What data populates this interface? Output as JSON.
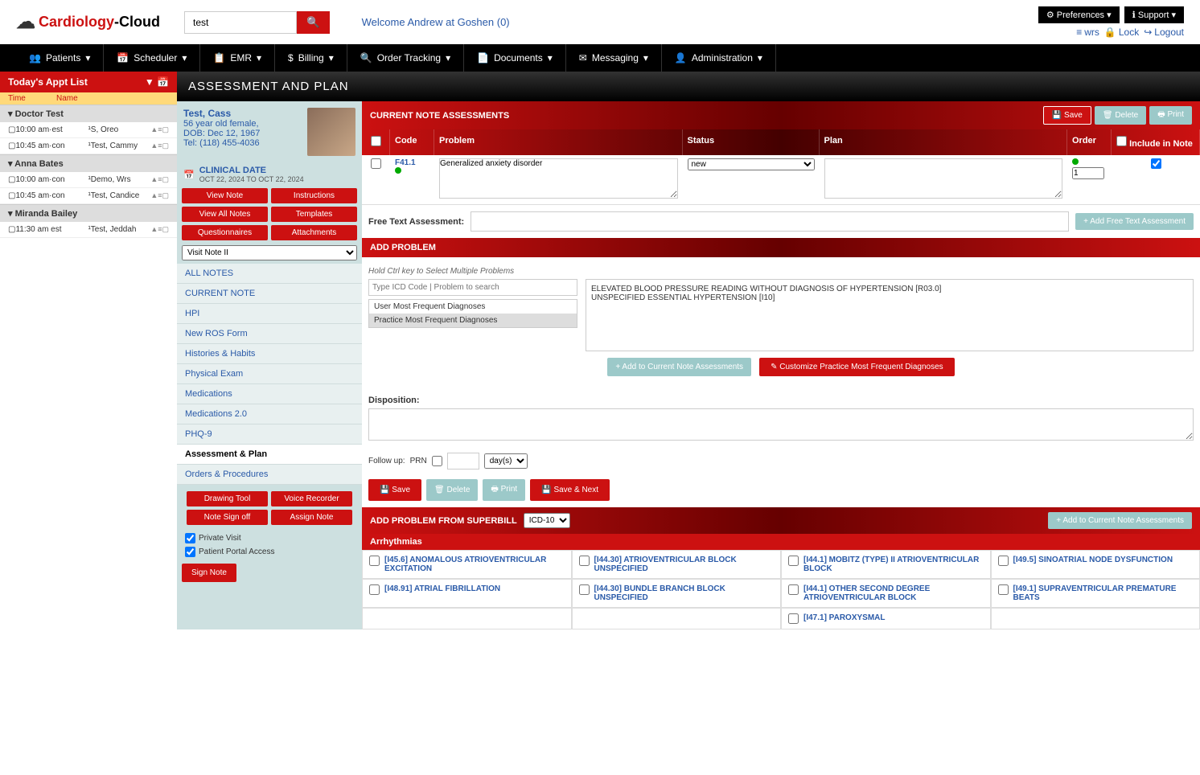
{
  "logo": {
    "part1": "Cardiology",
    "part2": "-Cloud"
  },
  "search": {
    "value": "test"
  },
  "welcome": "Welcome Andrew at Goshen (0)",
  "topbtns": {
    "preferences": "Preferences",
    "support": "Support"
  },
  "toplinks": {
    "wrs": "wrs",
    "lock": "Lock",
    "logout": "Logout"
  },
  "nav": [
    {
      "label": "Patients",
      "icon": "👥"
    },
    {
      "label": "Scheduler",
      "icon": "📅"
    },
    {
      "label": "EMR",
      "icon": "📋"
    },
    {
      "label": "Billing",
      "icon": "$"
    },
    {
      "label": "Order Tracking",
      "icon": "🔍"
    },
    {
      "label": "Documents",
      "icon": "📄"
    },
    {
      "label": "Messaging",
      "icon": "✉"
    },
    {
      "label": "Administration",
      "icon": "👤"
    }
  ],
  "apptlist": {
    "title": "Today's Appt List",
    "cols": {
      "time": "Time",
      "name": "Name"
    },
    "groups": [
      {
        "doctor": "Doctor Test",
        "appts": [
          {
            "time": "10:00 am·est",
            "name": "¹S, Oreo"
          },
          {
            "time": "10:45 am·con",
            "name": "¹Test, Cammy"
          }
        ]
      },
      {
        "doctor": "Anna Bates",
        "appts": [
          {
            "time": "10:00 am·con",
            "name": "¹Demo, Wrs"
          },
          {
            "time": "10:45 am·con",
            "name": "¹Test, Candice"
          }
        ]
      },
      {
        "doctor": "Miranda Bailey",
        "appts": [
          {
            "time": "11:30 am est",
            "name": "¹Test, Jeddah"
          }
        ]
      }
    ]
  },
  "pagetitle": "ASSESSMENT AND PLAN",
  "patient": {
    "name": "Test, Cass",
    "demo": "56 year old female,",
    "dob": "DOB: Dec 12, 1967",
    "tel": "Tel: (118) 455-4036",
    "clindate_lbl": "CLINICAL DATE",
    "clindate_val": "OCT 22, 2024 TO OCT 22, 2024"
  },
  "patbtns": {
    "viewnote": "View Note",
    "instructions": "Instructions",
    "viewall": "View All Notes",
    "templates": "Templates",
    "questionnaires": "Questionnaires",
    "attachments": "Attachments"
  },
  "visitselect": "Visit Note II",
  "notenav": [
    "ALL NOTES",
    "CURRENT NOTE",
    "HPI",
    "New ROS Form",
    "Histories & Habits",
    "Physical Exam",
    "Medications",
    "Medications 2.0",
    "PHQ-9",
    "Assessment & Plan",
    "Orders & Procedures"
  ],
  "toolbtns": {
    "drawing": "Drawing Tool",
    "voice": "Voice Recorder",
    "signoff": "Note Sign off",
    "assign": "Assign Note",
    "private": "Private Visit",
    "portal": "Patient Portal Access",
    "signnote": "Sign Note"
  },
  "assess": {
    "hdr": "CURRENT NOTE ASSESSMENTS",
    "save": "Save",
    "delete": "Delete",
    "print": "Print",
    "cols": {
      "code": "Code",
      "problem": "Problem",
      "status": "Status",
      "plan": "Plan",
      "order": "Order",
      "include": "Include in Note"
    },
    "rows": [
      {
        "code": "F41.1",
        "problem": "Generalized anxiety disorder",
        "status": "new",
        "plan": "",
        "order": "1",
        "include": true
      }
    ],
    "freetxt_lbl": "Free Text Assessment:",
    "freetxt_btn": "+ Add Free Text Assessment"
  },
  "addprob": {
    "hdr": "ADD PROBLEM",
    "hint": "Hold Ctrl key to Select Multiple Problems",
    "placeholder": "Type ICD Code | Problem to search",
    "freq": [
      "User Most Frequent Diagnoses",
      "Practice Most Frequent Diagnoses"
    ],
    "results": "ELEVATED BLOOD PRESSURE READING WITHOUT DIAGNOSIS OF HYPERTENSION [R03.0]\nUNSPECIFIED ESSENTIAL HYPERTENSION [I10]",
    "addbtn": "+ Add to Current Note Assessments",
    "custbtn": "✎ Customize Practice Most Frequent Diagnoses"
  },
  "disp": {
    "lbl": "Disposition:"
  },
  "follow": {
    "lbl": "Follow up:",
    "prn": "PRN",
    "unit": "day(s)"
  },
  "actions": {
    "save": "Save",
    "delete": "Delete",
    "print": "Print",
    "savenext": "Save & Next"
  },
  "superbill": {
    "hdr": "ADD PROBLEM FROM SUPERBILL",
    "coding": "ICD-10",
    "addbtn": "+ Add to Current Note Assessments",
    "category": "Arrhythmias",
    "codes": [
      {
        "code": "[I45.6]",
        "desc": "ANOMALOUS ATRIOVENTRICULAR EXCITATION"
      },
      {
        "code": "[I44.30]",
        "desc": "ATRIOVENTRICULAR BLOCK UNSPECIFIED"
      },
      {
        "code": "[I44.1]",
        "desc": "MOBITZ (TYPE) II ATRIOVENTRICULAR BLOCK"
      },
      {
        "code": "[I49.5]",
        "desc": "SINOATRIAL NODE DYSFUNCTION"
      },
      {
        "code": "[I48.91]",
        "desc": "ATRIAL FIBRILLATION"
      },
      {
        "code": "[I44.30]",
        "desc": "BUNDLE BRANCH BLOCK UNSPECIFIED"
      },
      {
        "code": "[I44.1]",
        "desc": "OTHER SECOND DEGREE ATRIOVENTRICULAR BLOCK"
      },
      {
        "code": "[I49.1]",
        "desc": "SUPRAVENTRICULAR PREMATURE BEATS"
      },
      {
        "code": "",
        "desc": ""
      },
      {
        "code": "",
        "desc": ""
      },
      {
        "code": "[I47.1]",
        "desc": "PAROXYSMAL"
      },
      {
        "code": "",
        "desc": ""
      }
    ]
  }
}
